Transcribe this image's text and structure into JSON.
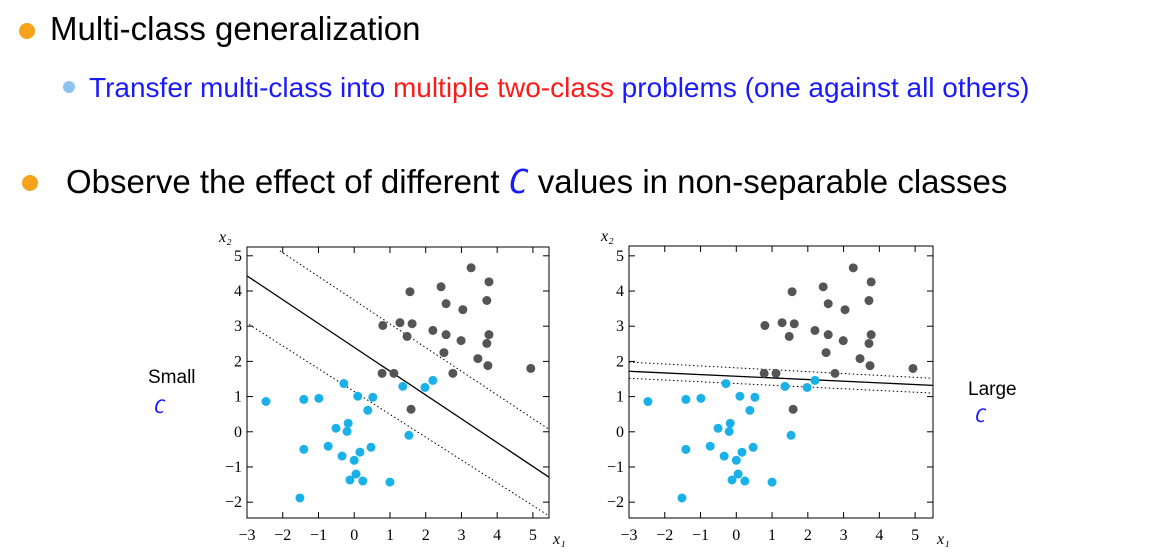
{
  "bullets": [
    {
      "text": "Multi-class generalization",
      "sub": [
        {
          "parts": [
            {
              "text": "Transfer multi-class into ",
              "color": "#1a1aff"
            },
            {
              "text": "multiple two-class",
              "color": "#ff1a1a"
            },
            {
              "text": " problems (one against all others)",
              "color": "#1a1aff"
            }
          ]
        }
      ]
    },
    {
      "parts": [
        {
          "text": "Observe the effect of different ",
          "color": "#000000"
        },
        {
          "text": "C",
          "color": "#1a1aff"
        },
        {
          "text": " values in non-separable classes",
          "color": "#000000"
        }
      ]
    }
  ],
  "side_labels": [
    {
      "text": "Small",
      "symbol": "C"
    },
    {
      "text": "Large",
      "symbol": "C"
    }
  ],
  "chart_data": [
    {
      "type": "scatter",
      "x_label": "x₁",
      "y_label": "x₂",
      "xlim": [
        -3,
        5.45
      ],
      "ylim": [
        -2.45,
        5.25
      ],
      "xticks": [
        {
          "value": -3,
          "label": "−3"
        },
        {
          "value": -2,
          "label": "−2"
        },
        {
          "value": -1,
          "label": "−1"
        },
        0,
        1,
        2,
        3,
        4,
        5
      ],
      "yticks": [
        {
          "value": -2,
          "label": "−2"
        },
        {
          "value": -1,
          "label": "−1"
        },
        0,
        1,
        2,
        3,
        4,
        5
      ],
      "series": [
        {
          "color": "#555555",
          "x": [
            3.27,
            1.56,
            2.43,
            3.77,
            2.57,
            3.04,
            3.71,
            0.8,
            1.28,
            1.62,
            1.48,
            2.2,
            2.57,
            2.99,
            3.77,
            3.71,
            2.51,
            3.46,
            3.74,
            0.78,
            1.11,
            2.76,
            4.94,
            1.59
          ],
          "y": [
            4.66,
            3.98,
            4.12,
            4.26,
            3.64,
            3.47,
            3.73,
            3.02,
            3.1,
            3.07,
            2.71,
            2.88,
            2.76,
            2.59,
            2.76,
            2.51,
            2.25,
            2.08,
            1.88,
            1.66,
            1.66,
            1.66,
            1.8,
            0.64
          ]
        },
        {
          "color": "#1ab0e8",
          "x": [
            -2.47,
            -1.41,
            -0.99,
            -0.29,
            1.36,
            2.2,
            1.98,
            0.1,
            0.52,
            0.38,
            -0.17,
            -0.51,
            -0.2,
            1.53,
            -1.41,
            -0.73,
            0.47,
            0.16,
            -0.34,
            0.0,
            0.05,
            -0.12,
            0.24,
            1.0,
            -1.52
          ],
          "y": [
            0.86,
            0.92,
            0.95,
            1.37,
            1.29,
            1.46,
            1.26,
            1.01,
            0.98,
            0.61,
            0.24,
            0.1,
            0.01,
            -0.1,
            -0.5,
            -0.41,
            -0.44,
            -0.58,
            -0.69,
            -0.81,
            -1.2,
            -1.37,
            -1.4,
            -1.43,
            -1.88
          ]
        }
      ],
      "lines": [
        {
          "style": "solid",
          "x": [
            -3,
            5.45
          ],
          "y": [
            4.43,
            -1.29
          ]
        },
        {
          "style": "dotted",
          "x": [
            -2.08,
            5.45
          ],
          "y": [
            5.14,
            0.07
          ]
        },
        {
          "style": "dotted",
          "x": [
            -2.94,
            5.45
          ],
          "y": [
            3.05,
            -2.39
          ]
        }
      ]
    },
    {
      "type": "scatter",
      "x_label": "x₁",
      "y_label": "x₂",
      "xlim": [
        -3,
        5.5
      ],
      "ylim": [
        -2.45,
        5.28
      ],
      "xticks": [
        {
          "value": -3,
          "label": "−3"
        },
        {
          "value": -2,
          "label": "−2"
        },
        {
          "value": -1,
          "label": "−1"
        },
        0,
        1,
        2,
        3,
        4,
        5
      ],
      "yticks": [
        {
          "value": -2,
          "label": "−2"
        },
        {
          "value": -1,
          "label": "−1"
        },
        0,
        1,
        2,
        3,
        4,
        5
      ],
      "series": [
        {
          "color": "#555555",
          "x": [
            3.27,
            1.56,
            2.43,
            3.77,
            2.57,
            3.04,
            3.71,
            0.8,
            1.28,
            1.62,
            1.48,
            2.2,
            2.57,
            2.99,
            3.77,
            3.71,
            2.51,
            3.46,
            3.74,
            0.78,
            1.11,
            2.76,
            4.94,
            1.59
          ],
          "y": [
            4.66,
            3.98,
            4.12,
            4.26,
            3.64,
            3.47,
            3.73,
            3.02,
            3.1,
            3.07,
            2.71,
            2.88,
            2.76,
            2.59,
            2.76,
            2.51,
            2.25,
            2.08,
            1.88,
            1.66,
            1.66,
            1.66,
            1.8,
            0.64
          ]
        },
        {
          "color": "#1ab0e8",
          "x": [
            -2.47,
            -1.41,
            -0.99,
            -0.29,
            1.36,
            2.2,
            1.98,
            0.1,
            0.52,
            0.38,
            -0.17,
            -0.51,
            -0.2,
            1.53,
            -1.41,
            -0.73,
            0.47,
            0.16,
            -0.34,
            0.0,
            0.05,
            -0.12,
            0.24,
            1.0,
            -1.52
          ],
          "y": [
            0.86,
            0.92,
            0.95,
            1.37,
            1.29,
            1.46,
            1.26,
            1.01,
            0.98,
            0.61,
            0.24,
            0.1,
            0.01,
            -0.1,
            -0.5,
            -0.41,
            -0.44,
            -0.58,
            -0.69,
            -0.81,
            -1.2,
            -1.37,
            -1.4,
            -1.43,
            -1.88
          ]
        }
      ],
      "lines": [
        {
          "style": "solid",
          "x": [
            -3,
            5.5
          ],
          "y": [
            1.72,
            1.32
          ]
        },
        {
          "style": "dotted",
          "x": [
            -3,
            5.5
          ],
          "y": [
            1.98,
            1.52
          ]
        },
        {
          "style": "dotted",
          "x": [
            -3,
            5.5
          ],
          "y": [
            1.52,
            1.1
          ]
        }
      ]
    }
  ]
}
